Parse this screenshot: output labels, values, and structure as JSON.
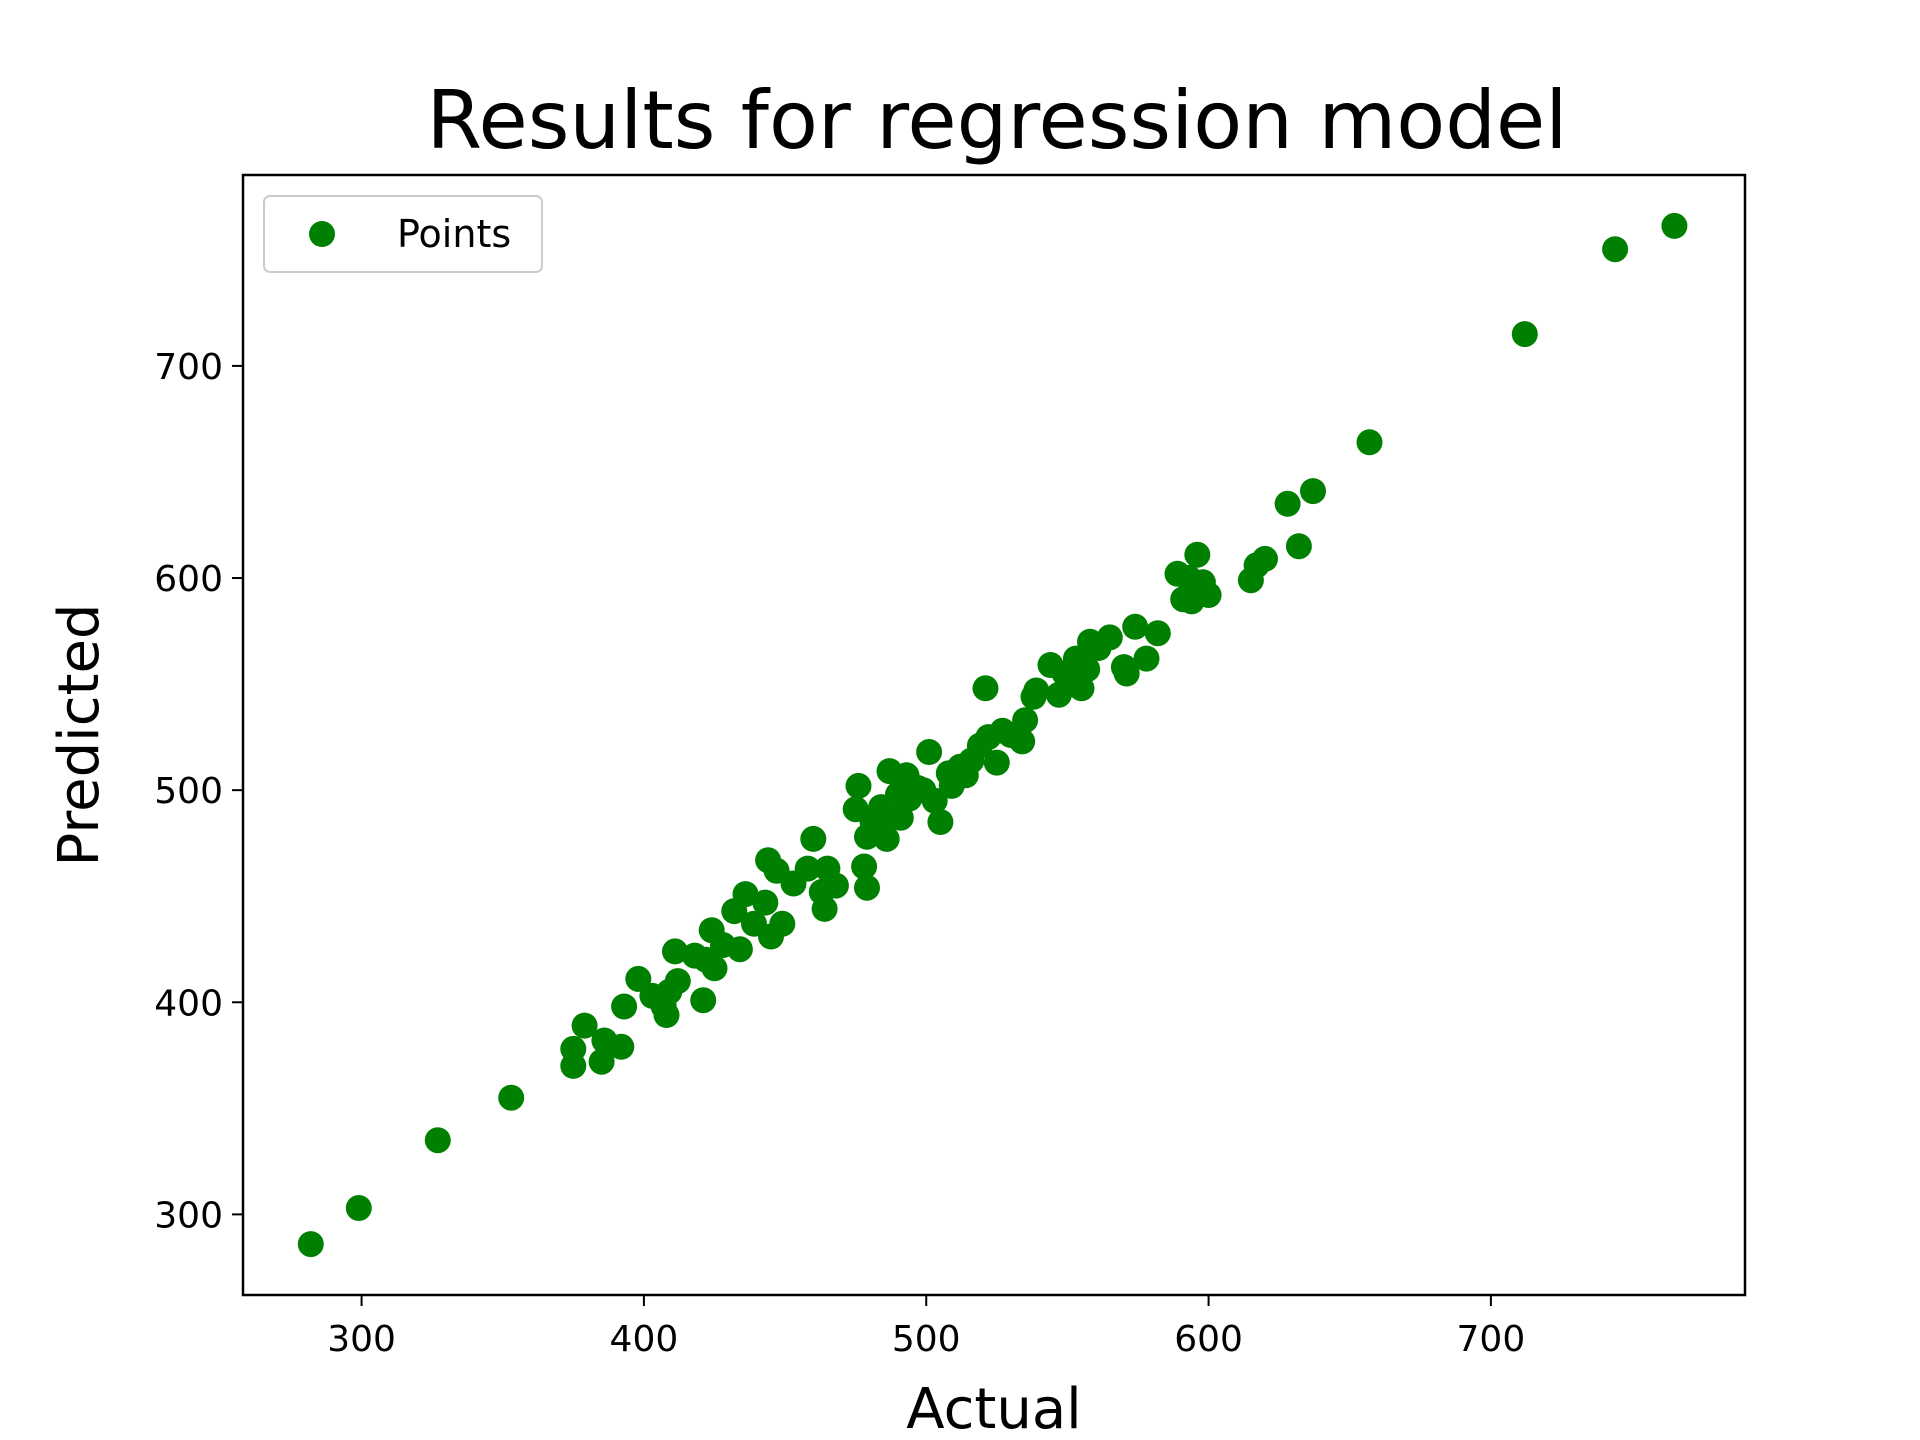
{
  "chart_data": {
    "type": "scatter",
    "title": "Results for regression model",
    "xlabel": "Actual",
    "ylabel": "Predicted",
    "xlim": [
      258,
      790
    ],
    "ylim": [
      262,
      790
    ],
    "xticks": [
      300,
      400,
      500,
      600,
      700
    ],
    "yticks": [
      300,
      400,
      500,
      600,
      700
    ],
    "xtick_labels": [
      "300",
      "400",
      "500",
      "600",
      "700"
    ],
    "ytick_labels": [
      "300",
      "400",
      "500",
      "600",
      "700"
    ],
    "grid": false,
    "legend": {
      "position": "top-left",
      "entries": [
        "Points"
      ]
    },
    "series": [
      {
        "name": "Points",
        "color": "#008000",
        "x": [
          282,
          299,
          327,
          353,
          375,
          375,
          379,
          385,
          386,
          392,
          393,
          398,
          403,
          407,
          408,
          409,
          411,
          412,
          418,
          421,
          422,
          424,
          425,
          428,
          432,
          434,
          436,
          439,
          443,
          444,
          445,
          447,
          449,
          453,
          458,
          460,
          463,
          464,
          465,
          468,
          475,
          476,
          478,
          479,
          479,
          481,
          484,
          485,
          486,
          487,
          490,
          491,
          493,
          494,
          497,
          499,
          501,
          503,
          505,
          508,
          509,
          512,
          514,
          516,
          519,
          521,
          522,
          525,
          527,
          530,
          534,
          535,
          538,
          539,
          544,
          547,
          549,
          551,
          553,
          555,
          557,
          558,
          561,
          565,
          570,
          571,
          574,
          578,
          582,
          589,
          591,
          593,
          594,
          596,
          598,
          600,
          615,
          617,
          620,
          628,
          632,
          637,
          657,
          712,
          744,
          765
        ],
        "y": [
          286,
          303,
          335,
          355,
          378,
          370,
          389,
          372,
          382,
          379,
          398,
          411,
          403,
          398,
          394,
          405,
          424,
          410,
          422,
          401,
          420,
          434,
          416,
          427,
          443,
          425,
          451,
          437,
          447,
          467,
          431,
          462,
          437,
          456,
          463,
          477,
          452,
          444,
          463,
          455,
          491,
          502,
          464,
          454,
          478,
          485,
          492,
          488,
          477,
          509,
          498,
          487,
          507,
          496,
          501,
          500,
          518,
          495,
          485,
          508,
          502,
          511,
          507,
          514,
          521,
          548,
          525,
          513,
          528,
          526,
          523,
          533,
          544,
          547,
          559,
          545,
          555,
          551,
          562,
          548,
          557,
          570,
          567,
          572,
          558,
          555,
          577,
          562,
          574,
          602,
          590,
          600,
          589,
          611,
          598,
          592,
          599,
          606,
          609,
          635,
          615,
          641,
          664,
          715,
          755,
          766
        ]
      }
    ]
  }
}
